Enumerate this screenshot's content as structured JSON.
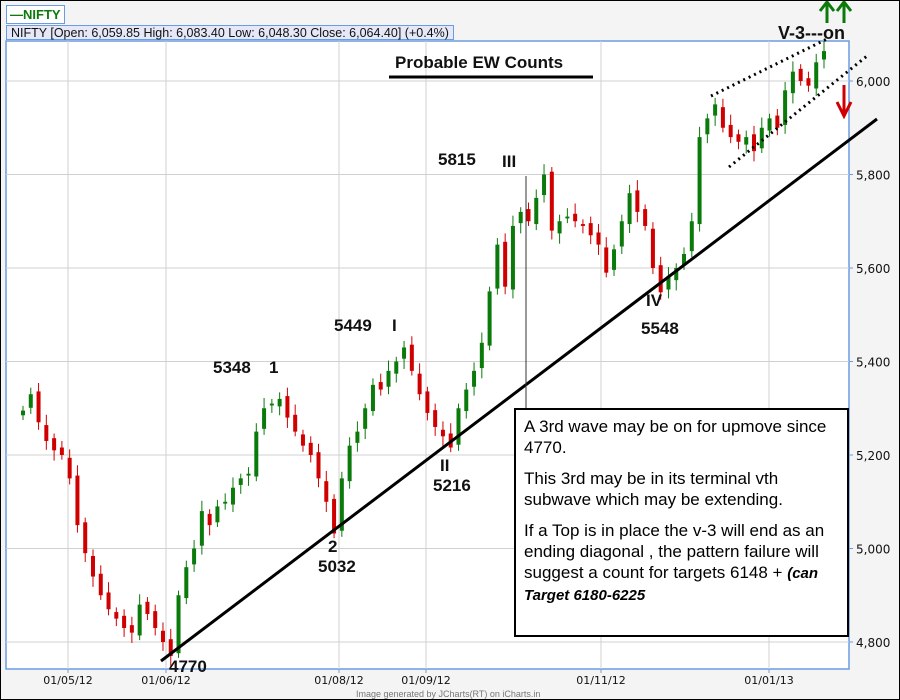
{
  "legend": {
    "label": "NIFTY",
    "color": "#0a7a0a"
  },
  "infobar": "NIFTY [Open: 6,059.85  High: 6,083.40  Low: 6,048.30  Close: 6,064.40] (+0.4%)",
  "title": "Probable EW Counts",
  "credit": "Image generated by  JCharts(RT) on iCharts.in",
  "annotations": {
    "l5348": "5348",
    "l1": "1",
    "l5449": "5449",
    "lI": "I",
    "l5815": "5815",
    "lIII": "III",
    "l2": "2",
    "l5032": "5032",
    "lII": "II",
    "l5216": "5216",
    "lIV": "IV",
    "l5548": "5548",
    "l4770": "4770",
    "lV3": "V-3---on"
  },
  "textbox": {
    "p1": "A 3rd wave may be on for upmove since 4770.",
    "p2": "This 3rd may be in its terminal vth subwave which may be extending.",
    "p3": "If a Top is in place the v-3 will end as an ending diagonal , the pattern failure will suggest a count for targets 6148 + ",
    "p3_italic": "(can Target 6180-6225"
  },
  "colors": {
    "up": "#0a7a0a",
    "down": "#d00000",
    "axis": "#6b9be0",
    "grid": "#d0d0d0"
  },
  "chart_data": {
    "type": "candlestick",
    "title": "Probable EW Counts",
    "ylim": [
      4760,
      6120
    ],
    "yticks": [
      4800,
      5000,
      5200,
      5400,
      5600,
      5800,
      6000
    ],
    "ytick_labels": [
      "4,800",
      "5,000",
      "5,200",
      "5,400",
      "5,600",
      "5,800",
      "6,000"
    ],
    "xtick_labels": [
      "01/05/12",
      "01/06/12",
      "01/08/12",
      "01/09/12",
      "01/11/12",
      "01/01/13"
    ],
    "grid": true,
    "closes": [
      5295,
      5330,
      5270,
      5230,
      5210,
      5200,
      5150,
      5050,
      4990,
      4940,
      4900,
      4870,
      4850,
      4830,
      4820,
      4880,
      4860,
      4830,
      4800,
      4770,
      4900,
      4960,
      5000,
      5080,
      5050,
      5090,
      5100,
      5130,
      5150,
      5160,
      5250,
      5300,
      5310,
      5320,
      5280,
      5250,
      5220,
      5200,
      5150,
      5100,
      5032,
      5150,
      5220,
      5250,
      5300,
      5350,
      5340,
      5380,
      5400,
      5430,
      5380,
      5330,
      5290,
      5260,
      5240,
      5216,
      5300,
      5340,
      5380,
      5440,
      5550,
      5650,
      5560,
      5690,
      5720,
      5700,
      5750,
      5800,
      5680,
      5700,
      5710,
      5700,
      5690,
      5670,
      5650,
      5590,
      5640,
      5700,
      5760,
      5720,
      5690,
      5600,
      5548,
      5580,
      5600,
      5630,
      5700,
      5880,
      5920,
      5950,
      5900,
      5880,
      5870,
      5880,
      5850,
      5900,
      5920,
      5900,
      5980,
      6020,
      6000,
      5990,
      6040,
      6064
    ],
    "trendlines": [
      {
        "kind": "support",
        "from": {
          "index": 19,
          "value": 4760
        },
        "style": "solid"
      },
      {
        "kind": "channel-upper",
        "style": "dotted"
      },
      {
        "kind": "channel-lower",
        "style": "dotted"
      }
    ]
  }
}
